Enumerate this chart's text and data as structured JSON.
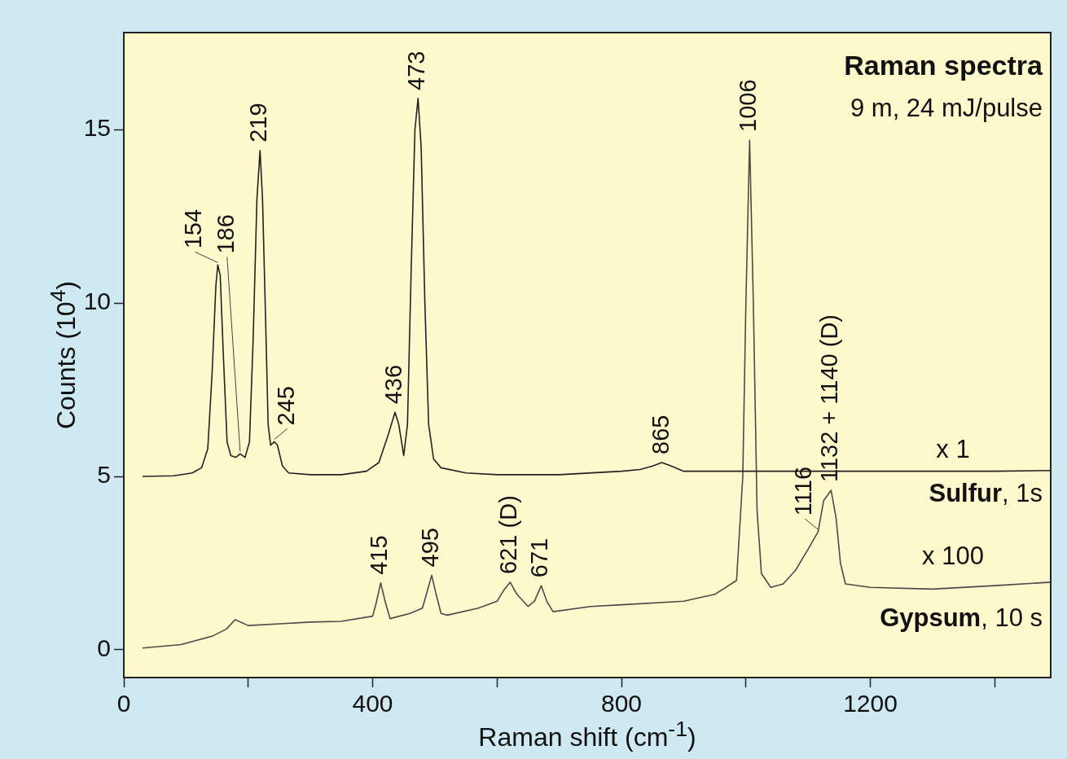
{
  "chart_data": {
    "type": "line",
    "title": "Raman spectra",
    "subtitle": "9 m, 24 mJ/pulse",
    "xlabel": "Raman shift (cm$^{-1}$)",
    "ylabel": "Counts (10$^{4}$)",
    "series": [
      {
        "name": "Sulfur, 1s",
        "color": "#222222",
        "x": [
          30,
          80,
          110,
          125,
          135,
          142,
          148,
          151,
          155,
          160,
          166,
          172,
          180,
          187,
          195,
          202,
          208,
          214,
          219,
          223,
          228,
          232,
          236,
          242,
          247,
          255,
          265,
          300,
          350,
          390,
          410,
          425,
          436,
          442,
          450,
          456,
          462,
          468,
          473,
          478,
          484,
          490,
          498,
          510,
          550,
          600,
          700,
          800,
          830,
          850,
          865,
          880,
          900,
          950,
          1000,
          1100,
          1200,
          1300,
          1400,
          1490
        ],
        "values": [
          5.0,
          5.02,
          5.1,
          5.25,
          5.8,
          8.0,
          10.5,
          11.1,
          10.8,
          8.5,
          6.0,
          5.6,
          5.55,
          5.65,
          5.55,
          6.0,
          9.0,
          13.0,
          14.4,
          13.0,
          9.5,
          6.5,
          5.9,
          6.0,
          5.9,
          5.3,
          5.1,
          5.05,
          5.05,
          5.15,
          5.4,
          6.2,
          6.85,
          6.5,
          5.6,
          6.5,
          11.0,
          15.0,
          15.9,
          14.5,
          10.0,
          6.5,
          5.5,
          5.25,
          5.1,
          5.05,
          5.05,
          5.15,
          5.2,
          5.3,
          5.4,
          5.3,
          5.15,
          5.15,
          5.15,
          5.15,
          5.15,
          5.15,
          5.15,
          5.17
        ]
      },
      {
        "name": "Gypsum, 10 s",
        "color": "#4a4a4a",
        "x": [
          30,
          92,
          143,
          165,
          179,
          200,
          250,
          300,
          349,
          400,
          405,
          413,
          420,
          428,
          460,
          480,
          488,
          495,
          502,
          510,
          520,
          570,
          600,
          610,
          621,
          632,
          650,
          660,
          671,
          680,
          690,
          750,
          800,
          900,
          950,
          985,
          995,
          1000,
          1006,
          1012,
          1018,
          1025,
          1040,
          1060,
          1080,
          1100,
          1116,
          1125,
          1137,
          1145,
          1152,
          1160,
          1200,
          1300,
          1400,
          1490
        ],
        "values": [
          0.05,
          0.15,
          0.4,
          0.6,
          0.87,
          0.7,
          0.75,
          0.8,
          0.82,
          0.97,
          1.3,
          1.93,
          1.4,
          0.9,
          1.05,
          1.2,
          1.7,
          2.15,
          1.6,
          1.05,
          1.0,
          1.2,
          1.4,
          1.7,
          1.95,
          1.6,
          1.25,
          1.4,
          1.85,
          1.4,
          1.1,
          1.25,
          1.3,
          1.4,
          1.6,
          2.0,
          5.0,
          10.0,
          14.7,
          10.0,
          4.0,
          2.2,
          1.8,
          1.9,
          2.3,
          2.9,
          3.4,
          4.3,
          4.6,
          3.8,
          2.5,
          1.9,
          1.8,
          1.75,
          1.85,
          1.95
        ]
      }
    ],
    "xlim": [
      0,
      1490
    ],
    "ylim": [
      -0.8,
      17.8
    ],
    "xticks": [
      0,
      {
        "value": 200,
        "label": null
      },
      400,
      {
        "value": 600,
        "label": null
      },
      800,
      {
        "value": 1000,
        "label": null
      },
      1200,
      {
        "value": 1400,
        "label": null
      }
    ],
    "yticks": [
      0,
      5,
      10,
      15
    ],
    "grid": false,
    "legend": false,
    "marker": "none",
    "annotations": [
      "x 1",
      "x 100",
      {
        "text": "154",
        "x": 151,
        "y": 11.1
      },
      {
        "text": "186",
        "x": 187,
        "y": 5.65
      },
      {
        "text": "219",
        "x": 219,
        "y": 14.4
      },
      {
        "text": "245",
        "x": 242,
        "y": 6.0
      },
      {
        "text": "436",
        "x": 436,
        "y": 6.85
      },
      {
        "text": "473",
        "x": 473,
        "y": 15.9
      },
      {
        "text": "865",
        "x": 865,
        "y": 5.4
      },
      {
        "text": "1006",
        "x": 1006,
        "y": 14.7
      },
      {
        "text": "415",
        "x": 413,
        "y": 1.93
      },
      {
        "text": "495",
        "x": 495,
        "y": 2.15
      },
      {
        "text": "621 (D)",
        "x": 621,
        "y": 1.95
      },
      {
        "text": "671",
        "x": 671,
        "y": 1.85
      },
      {
        "text": "1116",
        "x": 1116,
        "y": 3.4
      },
      {
        "text": "1132 + 1140 (D)",
        "x": 1137,
        "y": 4.6
      }
    ]
  }
}
